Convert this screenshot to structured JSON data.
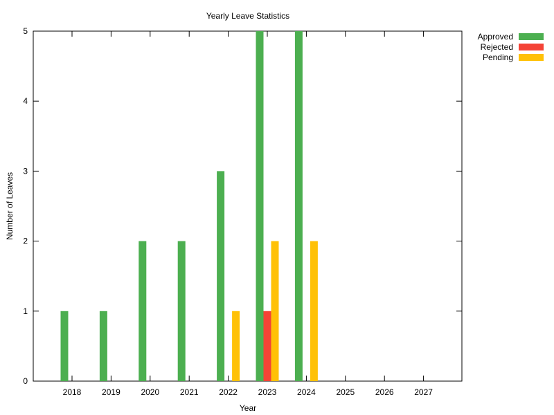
{
  "chart_data": {
    "type": "bar",
    "title": "Yearly Leave Statistics",
    "xlabel": "Year",
    "ylabel": "Number of Leaves",
    "categories": [
      "2018",
      "2019",
      "2020",
      "2021",
      "2022",
      "2023",
      "2024",
      "2025",
      "2026",
      "2027"
    ],
    "ylim": [
      0,
      5
    ],
    "yticks": [
      "0",
      "1",
      "2",
      "3",
      "4",
      "5"
    ],
    "grid": false,
    "legend_position": "outside-top-right",
    "series": [
      {
        "name": "Approved",
        "color": "#4caf50",
        "values": [
          1,
          1,
          2,
          2,
          3,
          5,
          5,
          0,
          0,
          0
        ]
      },
      {
        "name": "Rejected",
        "color": "#f44336",
        "values": [
          0,
          0,
          0,
          0,
          0,
          1,
          0,
          0,
          0,
          0
        ]
      },
      {
        "name": "Pending",
        "color": "#ffc107",
        "values": [
          0,
          0,
          0,
          0,
          1,
          2,
          2,
          0,
          0,
          0
        ]
      }
    ]
  }
}
